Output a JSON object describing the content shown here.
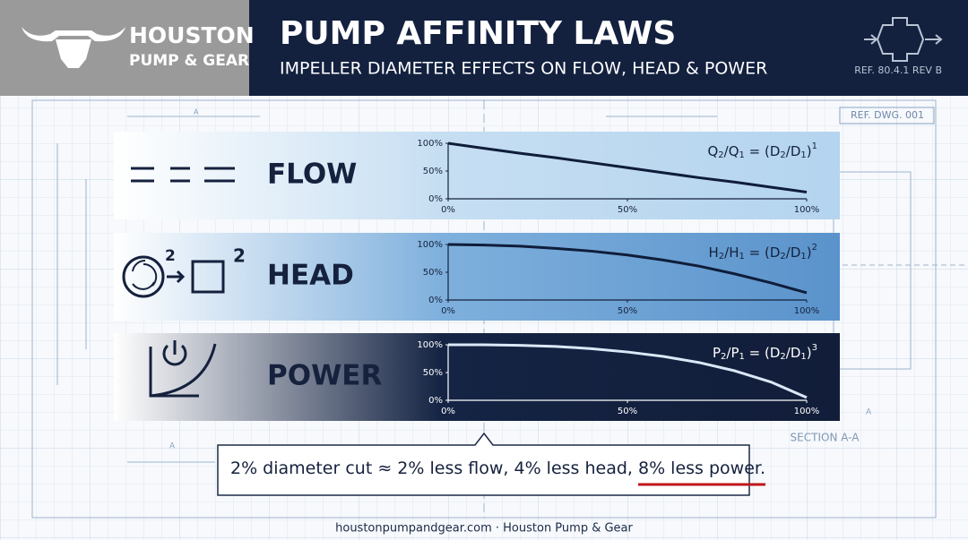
{
  "header": {
    "brand": [
      "HOUSTON",
      "PUMP & GEAR"
    ],
    "title": "PUMP AFFINITY LAWS",
    "subtitle": "IMPELLER DIAMETER EFFECTS ON FLOW, HEAD & POWER",
    "ref": "REF. 80.4.1 REV B"
  },
  "blueprint": {
    "drawing_ref": "REF. DWG. 001",
    "section": "SECTION A-A",
    "markers": [
      "A",
      "A",
      "A"
    ]
  },
  "panels": [
    {
      "label": "FLOW",
      "type": "line",
      "formula": {
        "parts": [
          {
            "text": "Q",
            "sub": "2"
          },
          {
            "text": "/Q",
            "sub": "1"
          },
          {
            "text": " = (D",
            "sub": "2"
          },
          {
            "text": "/D",
            "sub": "1"
          },
          {
            "text": ")"
          }
        ],
        "power": "1"
      },
      "x": [
        0,
        10,
        20,
        30,
        40,
        50,
        60,
        70,
        80,
        90,
        100
      ],
      "values": [
        100,
        91,
        82,
        74,
        65,
        56,
        47,
        38,
        30,
        21,
        12
      ],
      "xlim": [
        0,
        100
      ],
      "ylim": [
        0,
        100
      ],
      "xticks": [
        {
          "value": 0,
          "label": "0%"
        },
        {
          "value": 50,
          "label": "50%"
        },
        {
          "value": 100,
          "label": "100%"
        }
      ],
      "yticks": [
        {
          "value": 0,
          "label": "0%"
        },
        {
          "value": 50,
          "label": "50%"
        },
        {
          "value": 100,
          "label": "100%"
        }
      ],
      "color": "#0f1d3a"
    },
    {
      "label": "HEAD",
      "type": "line",
      "icon_text": [
        "2",
        "2"
      ],
      "formula": {
        "parts": [
          {
            "text": "H",
            "sub": "2"
          },
          {
            "text": "/H",
            "sub": "1"
          },
          {
            "text": " = (D",
            "sub": "2"
          },
          {
            "text": "/D",
            "sub": "1"
          },
          {
            "text": ")"
          }
        ],
        "power": "2"
      },
      "x": [
        0,
        10,
        20,
        30,
        40,
        50,
        60,
        70,
        80,
        90,
        100
      ],
      "values": [
        100,
        99,
        97,
        93,
        88,
        81,
        72,
        61,
        47,
        31,
        13
      ],
      "xlim": [
        0,
        100
      ],
      "ylim": [
        0,
        100
      ],
      "xticks": [
        {
          "value": 0,
          "label": "0%"
        },
        {
          "value": 50,
          "label": "50%"
        },
        {
          "value": 100,
          "label": "100%"
        }
      ],
      "yticks": [
        {
          "value": 0,
          "label": "0%"
        },
        {
          "value": 50,
          "label": "50%"
        },
        {
          "value": 100,
          "label": "100%"
        }
      ],
      "color": "#0f1d3a"
    },
    {
      "label": "POWER",
      "type": "line",
      "formula": {
        "parts": [
          {
            "text": "P",
            "sub": "2"
          },
          {
            "text": "/P",
            "sub": "1"
          },
          {
            "text": " = (D",
            "sub": "2"
          },
          {
            "text": "/D",
            "sub": "1"
          },
          {
            "text": ")"
          }
        ],
        "power": "3"
      },
      "x": [
        0,
        10,
        20,
        30,
        40,
        50,
        60,
        70,
        80,
        90,
        100
      ],
      "values": [
        100,
        100,
        99,
        97,
        93,
        87,
        79,
        68,
        53,
        33,
        5
      ],
      "xlim": [
        0,
        100
      ],
      "ylim": [
        0,
        100
      ],
      "xticks": [
        {
          "value": 0,
          "label": "0%"
        },
        {
          "value": 50,
          "label": "50%"
        },
        {
          "value": 100,
          "label": "100%"
        }
      ],
      "yticks": [
        {
          "value": 0,
          "label": "0%"
        },
        {
          "value": 50,
          "label": "50%"
        },
        {
          "value": 100,
          "label": "100%"
        }
      ],
      "color": "#dbe8f7"
    }
  ],
  "callout": [
    "2% diameter cut ≈ 2% less flow, 4% less head, ",
    "8% less power."
  ],
  "footer": "houstonpumpandgear.com · Houston Pump & Gear"
}
